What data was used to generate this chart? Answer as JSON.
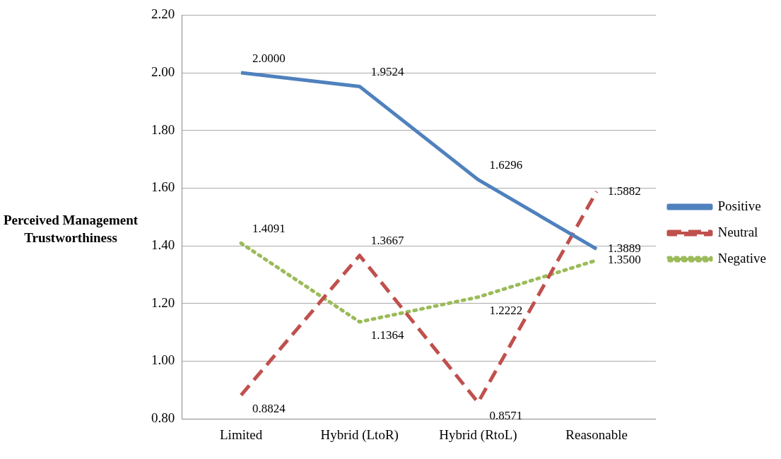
{
  "chart_data": {
    "type": "line",
    "ylabel": "Perceived Management Trustworthiness",
    "categories": [
      "Limited",
      "Hybrid (LtoR)",
      "Hybrid (RtoL)",
      "Reasonable"
    ],
    "series": [
      {
        "name": "Positive",
        "color": "#4f81bd",
        "line_style": "solid",
        "values": [
          2.0,
          1.9524,
          1.6296,
          1.3889
        ],
        "value_labels": [
          "2.0000",
          "1.9524",
          "1.6296",
          "1.3889"
        ]
      },
      {
        "name": "Neutral",
        "color": "#c0504d",
        "line_style": "dashed",
        "values": [
          0.8824,
          1.3667,
          0.8571,
          1.5882
        ],
        "value_labels": [
          "0.8824",
          "1.3667",
          "0.8571",
          "1.5882"
        ]
      },
      {
        "name": "Negative",
        "color": "#9bbb59",
        "line_style": "dotted",
        "values": [
          1.4091,
          1.1364,
          1.2222,
          1.35
        ],
        "value_labels": [
          "1.4091",
          "1.1364",
          "1.2222",
          "1.3500"
        ]
      }
    ],
    "ylim": [
      0.8,
      2.2
    ],
    "yticks": [
      {
        "value": 0.8,
        "label": "0.80"
      },
      {
        "value": 1.0,
        "label": "1.00"
      },
      {
        "value": 1.2,
        "label": "1.20"
      },
      {
        "value": 1.4,
        "label": "1.40"
      },
      {
        "value": 1.6,
        "label": "1.60"
      },
      {
        "value": 1.8,
        "label": "1.80"
      },
      {
        "value": 2.0,
        "label": "2.00"
      },
      {
        "value": 2.2,
        "label": "2.20"
      }
    ],
    "grid": "y",
    "legend": "right",
    "marker": "none"
  }
}
